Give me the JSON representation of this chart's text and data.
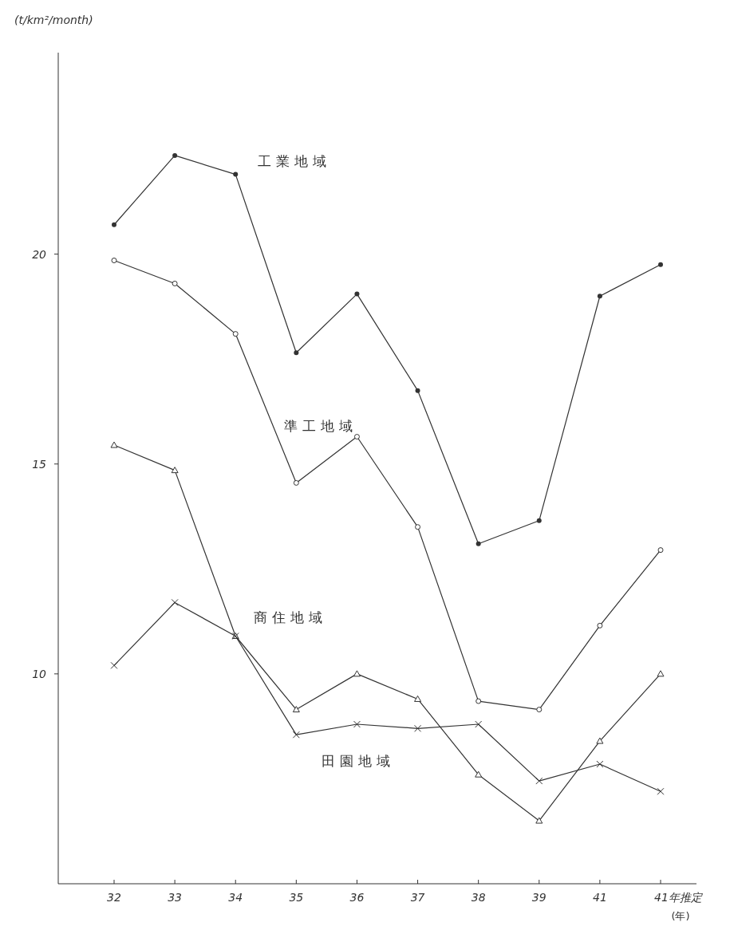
{
  "chart_data": {
    "type": "line",
    "ylabel": "(t/km²/month)",
    "xlabel": "(年)",
    "categories": [
      "32",
      "33",
      "34",
      "35",
      "36",
      "37",
      "38",
      "39",
      "41",
      "41年推定"
    ],
    "ylim": [
      5,
      24.8
    ],
    "yticks": [
      10,
      15,
      20
    ],
    "grid": false,
    "line_style": "solid",
    "series": [
      {
        "name": "工業地域",
        "color": "#333333",
        "marker": "filled-circle",
        "values": [
          20.7,
          22.35,
          21.9,
          17.65,
          19.05,
          16.75,
          13.1,
          13.65,
          19.0,
          19.75
        ]
      },
      {
        "name": "準工地域",
        "color": "#333333",
        "marker": "circle",
        "values": [
          19.85,
          19.3,
          18.1,
          14.55,
          15.65,
          13.5,
          9.35,
          9.15,
          11.15,
          12.95
        ]
      },
      {
        "name": "商住地域",
        "color": "#333333",
        "marker": "triangle",
        "values": [
          15.45,
          14.85,
          10.9,
          9.15,
          10.0,
          9.4,
          7.6,
          6.5,
          8.4,
          10.0
        ]
      },
      {
        "name": "田園地域",
        "color": "#333333",
        "marker": "cross",
        "values": [
          10.2,
          11.7,
          10.9,
          8.55,
          8.8,
          8.7,
          8.8,
          7.45,
          7.85,
          7.2
        ]
      }
    ]
  }
}
